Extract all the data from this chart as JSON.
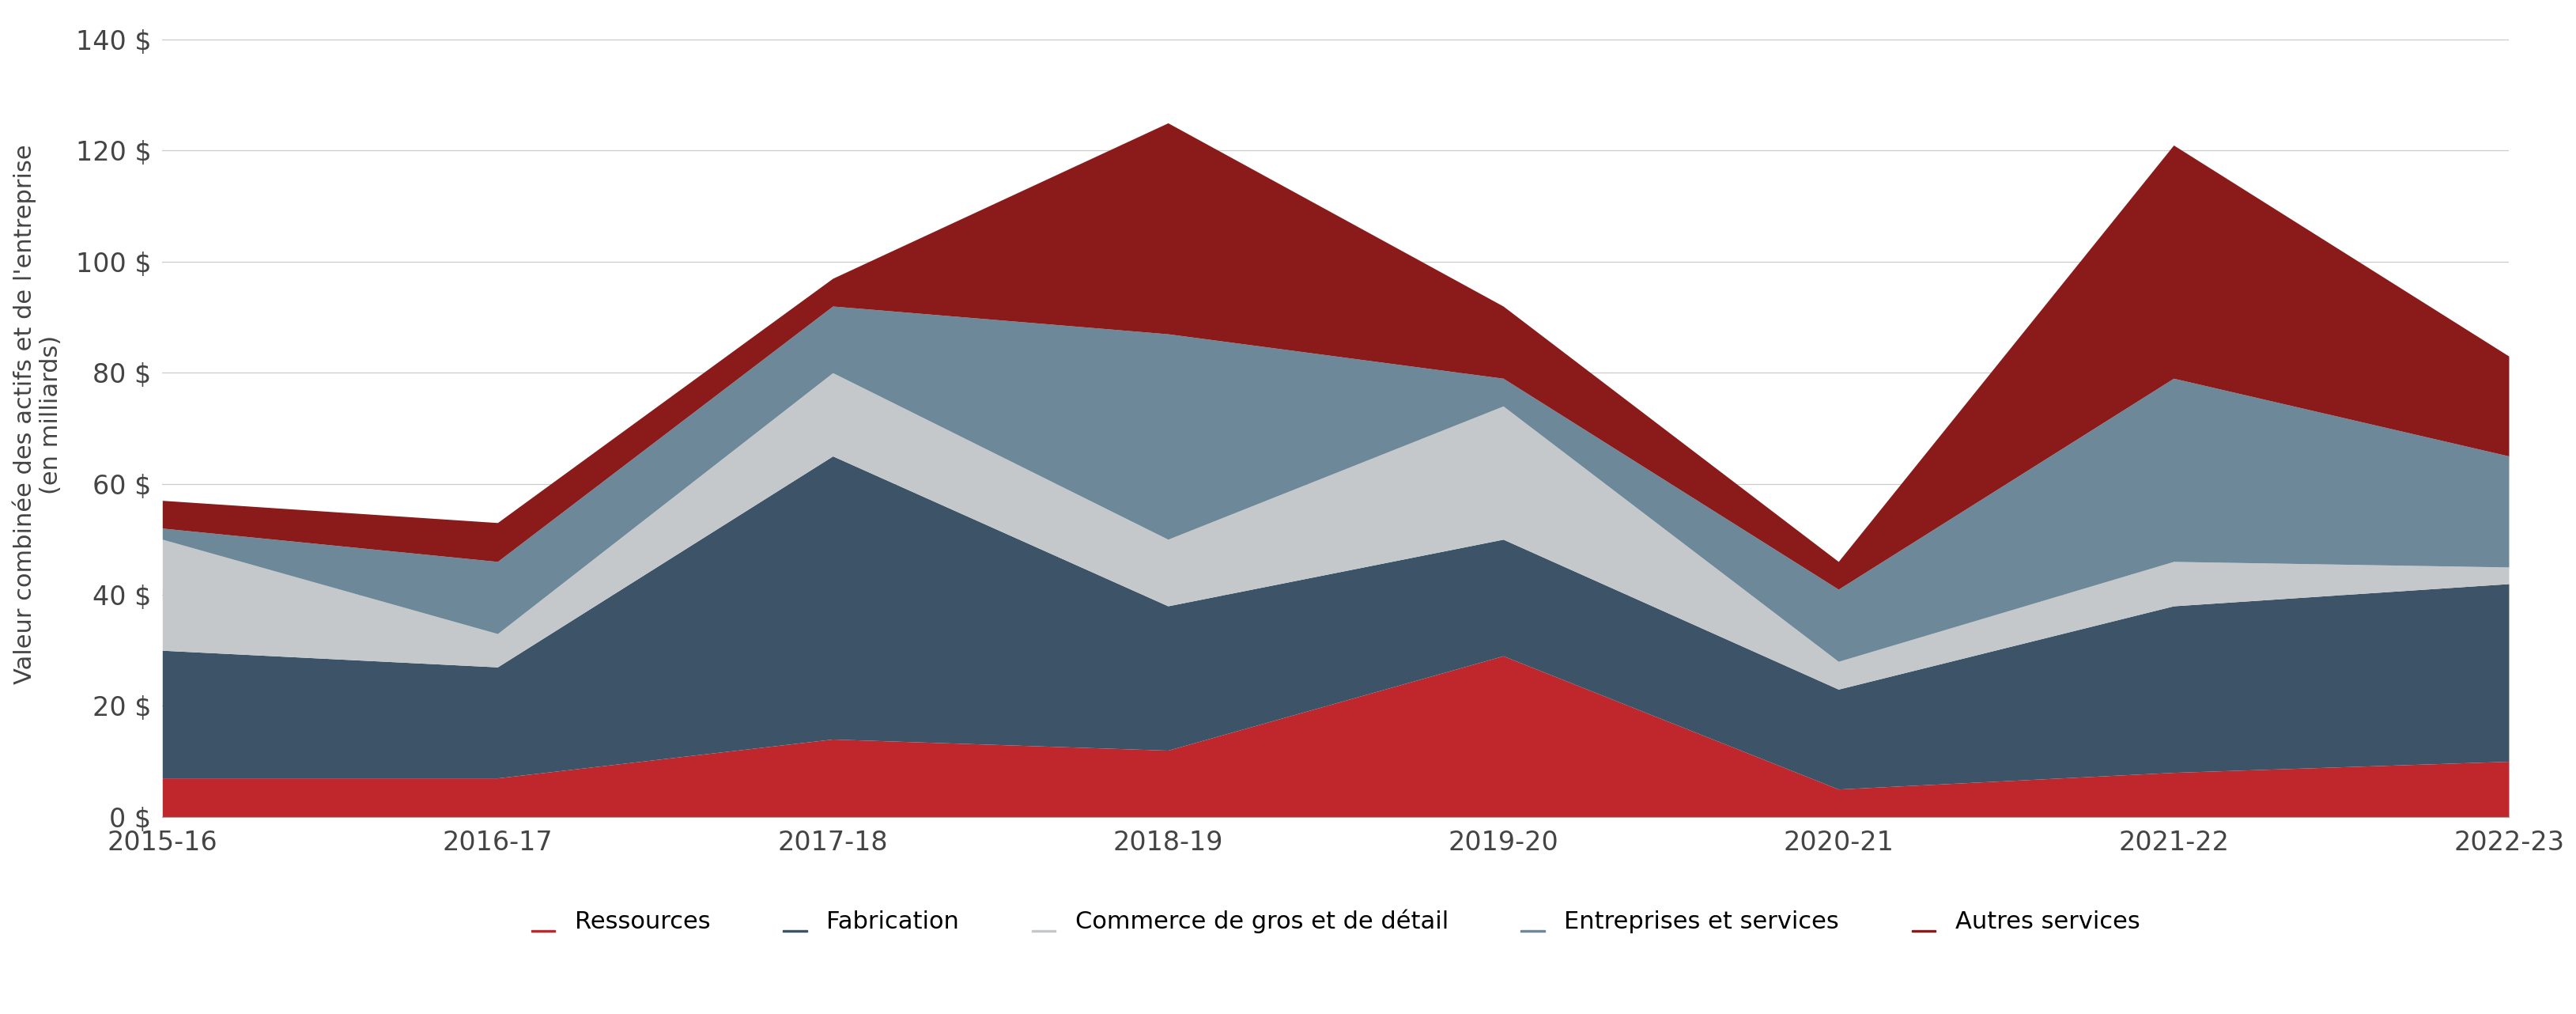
{
  "categories": [
    "2015-16",
    "2016-17",
    "2017-18",
    "2018-19",
    "2019-20",
    "2020-21",
    "2021-22",
    "2022-23"
  ],
  "series": {
    "Ressources": [
      7,
      7,
      14,
      12,
      29,
      5,
      8,
      10
    ],
    "Fabrication": [
      23,
      20,
      51,
      26,
      21,
      18,
      30,
      32
    ],
    "Commerce de gros et de détail": [
      20,
      6,
      15,
      12,
      24,
      5,
      8,
      3
    ],
    "Entreprises et services": [
      2,
      13,
      12,
      37,
      5,
      13,
      33,
      20
    ],
    "Autres services": [
      5,
      7,
      5,
      38,
      13,
      5,
      42,
      18
    ]
  },
  "colors": {
    "Ressources": "#c0272d",
    "Fabrication": "#3d5468",
    "Commerce de gros et de détail": "#c5c8cb",
    "Entreprises et services": "#6d8899",
    "Autres services": "#8b1a1a"
  },
  "ylabel_line1": "Valeur combinée des actifs et de l'entreprise",
  "ylabel_line2": "(en milliards)",
  "ylim": [
    0,
    145
  ],
  "yticks": [
    0,
    20,
    40,
    60,
    80,
    100,
    120,
    140
  ],
  "ytick_labels": [
    "0 $",
    "20 $",
    "40 $",
    "60 $",
    "80 $",
    "100 $",
    "120 $",
    "140 $"
  ],
  "background_color": "#ffffff",
  "grid_color": "#cccccc",
  "legend_order": [
    "Ressources",
    "Fabrication",
    "Commerce de gros et de détail",
    "Entreprises et services",
    "Autres services"
  ]
}
